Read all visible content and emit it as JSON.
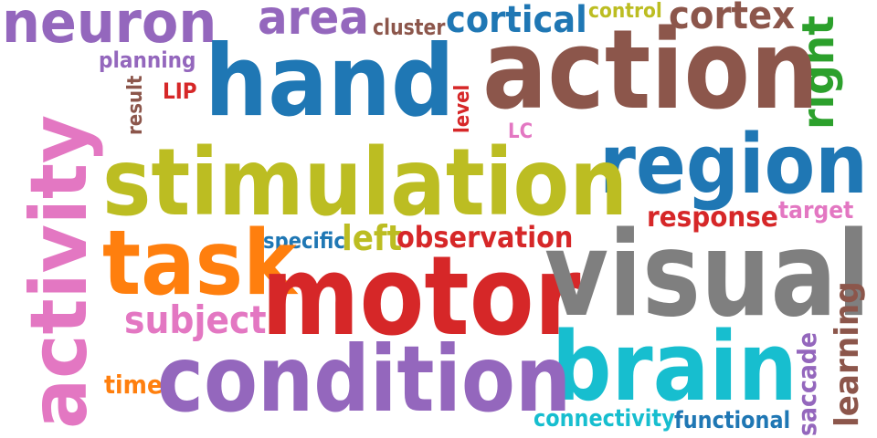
{
  "words": [
    {
      "id": "neuron",
      "text": "neuron",
      "color": "#9467bd"
    },
    {
      "id": "area",
      "text": "area",
      "color": "#9467bd"
    },
    {
      "id": "cluster",
      "text": "cluster",
      "color": "#8c564b"
    },
    {
      "id": "cortical",
      "text": "cortical",
      "color": "#1f77b4"
    },
    {
      "id": "control",
      "text": "control",
      "color": "#bcbd22"
    },
    {
      "id": "cortex",
      "text": "cortex",
      "color": "#8c564b"
    },
    {
      "id": "right",
      "text": "right",
      "color": "#2ca02c",
      "orientation": "vertical"
    },
    {
      "id": "planning",
      "text": "planning",
      "color": "#9467bd"
    },
    {
      "id": "hand",
      "text": "hand",
      "color": "#1f77b4"
    },
    {
      "id": "action",
      "text": "action",
      "color": "#8c564b"
    },
    {
      "id": "result",
      "text": "result",
      "color": "#8c564b",
      "orientation": "vertical"
    },
    {
      "id": "lip",
      "text": "LIP",
      "color": "#d62728"
    },
    {
      "id": "level",
      "text": "level",
      "color": "#d62728",
      "orientation": "vertical"
    },
    {
      "id": "activity",
      "text": "activity",
      "color": "#e377c2",
      "orientation": "vertical"
    },
    {
      "id": "lc",
      "text": "LC",
      "color": "#e377c2"
    },
    {
      "id": "region",
      "text": "region",
      "color": "#1f77b4"
    },
    {
      "id": "stimulation",
      "text": "stimulation",
      "color": "#bcbd22"
    },
    {
      "id": "response",
      "text": "response",
      "color": "#d62728"
    },
    {
      "id": "target",
      "text": "target",
      "color": "#e377c2"
    },
    {
      "id": "specific",
      "text": "specific",
      "color": "#1f77b4"
    },
    {
      "id": "left",
      "text": "left",
      "color": "#bcbd22"
    },
    {
      "id": "observation",
      "text": "observation",
      "color": "#d62728"
    },
    {
      "id": "task",
      "text": "task",
      "color": "#ff7f0e"
    },
    {
      "id": "motor",
      "text": "motor",
      "color": "#d62728"
    },
    {
      "id": "visual",
      "text": "visual",
      "color": "#7f7f7f"
    },
    {
      "id": "subject",
      "text": "subject",
      "color": "#e377c2"
    },
    {
      "id": "learning",
      "text": "learning",
      "color": "#8c564b",
      "orientation": "vertical"
    },
    {
      "id": "saccade",
      "text": "saccade",
      "color": "#9467bd",
      "orientation": "vertical"
    },
    {
      "id": "brain",
      "text": "brain",
      "color": "#17becf"
    },
    {
      "id": "time",
      "text": "time",
      "color": "#ff7f0e"
    },
    {
      "id": "condition",
      "text": "condition",
      "color": "#9467bd"
    },
    {
      "id": "connectivity",
      "text": "connectivity",
      "color": "#17becf"
    },
    {
      "id": "functional",
      "text": "functional",
      "color": "#1f77b4"
    }
  ]
}
